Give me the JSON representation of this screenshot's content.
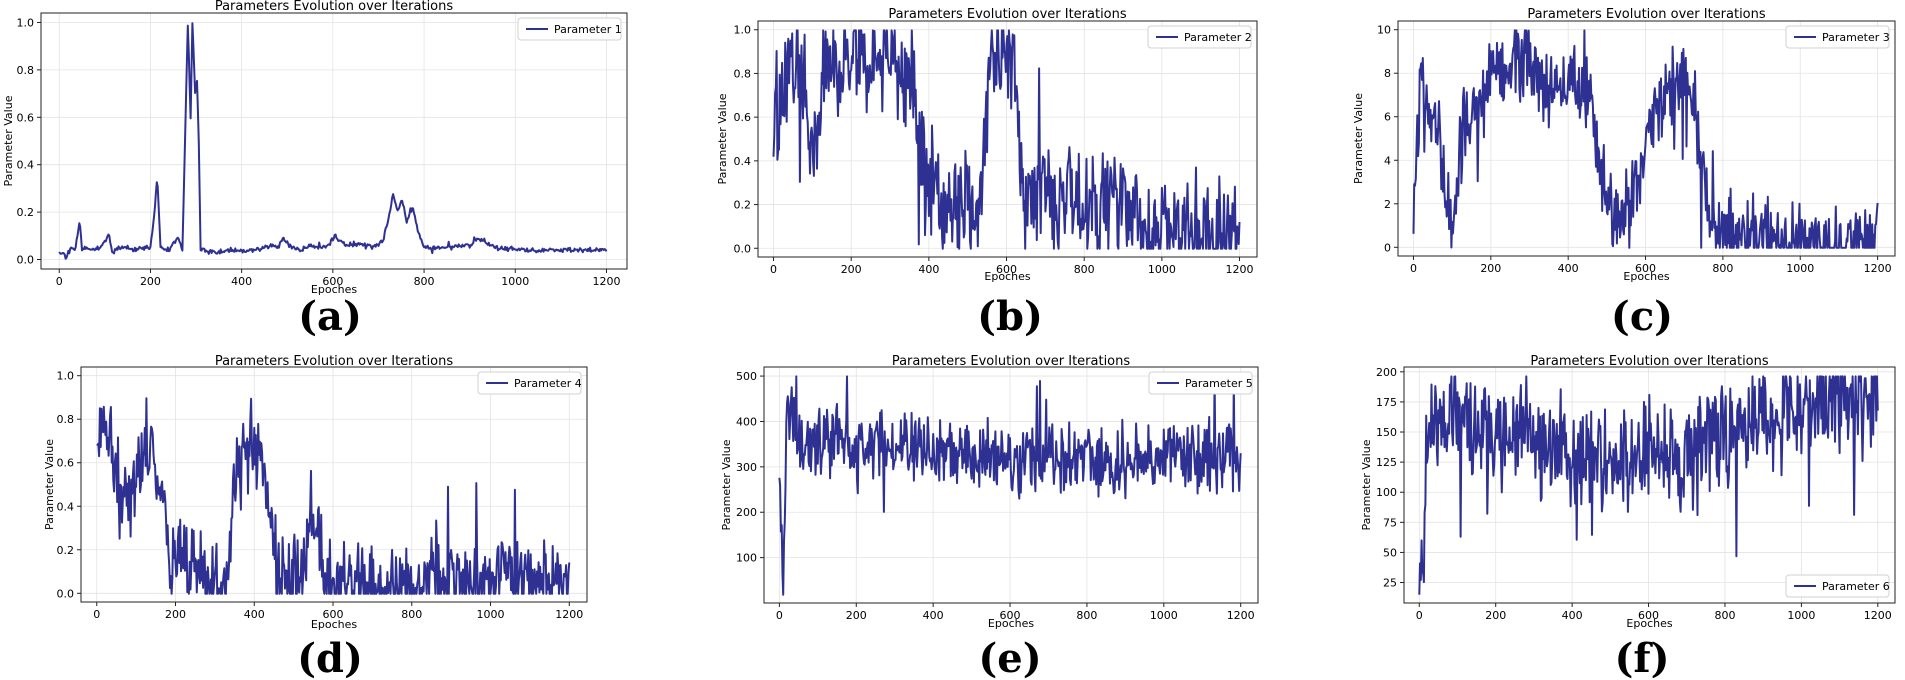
{
  "figure": {
    "line_color": "#2E3192"
  },
  "chart_data": [
    {
      "id": "a",
      "type": "line",
      "panel_label": "(a)",
      "title": "Parameters Evolution over Iterations",
      "xlabel": "Epoches",
      "ylabel": "Parameter Value",
      "xlim": [
        -40,
        1245
      ],
      "ylim": [
        -0.04,
        1.04
      ],
      "xticks": [
        0,
        200,
        400,
        600,
        800,
        1000,
        1200
      ],
      "yticks": [
        0.0,
        0.2,
        0.4,
        0.6,
        0.8,
        1.0
      ],
      "ytick_labels": [
        "0.0",
        "0.2",
        "0.4",
        "0.6",
        "0.8",
        "1.0"
      ],
      "grid": true,
      "legend_loc": "top-right",
      "series": [
        {
          "name": "Parameter 1",
          "x_range": [
            0,
            1200
          ],
          "points": [
            [
              0,
              0.035
            ],
            [
              8,
              0.03
            ],
            [
              15,
              0.01
            ],
            [
              22,
              0.04
            ],
            [
              35,
              0.05
            ],
            [
              45,
              0.16
            ],
            [
              50,
              0.05
            ],
            [
              70,
              0.04
            ],
            [
              90,
              0.05
            ],
            [
              110,
              0.1
            ],
            [
              115,
              0.04
            ],
            [
              140,
              0.05
            ],
            [
              170,
              0.04
            ],
            [
              200,
              0.05
            ],
            [
              210,
              0.22
            ],
            [
              215,
              0.36
            ],
            [
              222,
              0.05
            ],
            [
              240,
              0.04
            ],
            [
              260,
              0.09
            ],
            [
              270,
              0.04
            ],
            [
              282,
              1.0
            ],
            [
              288,
              0.6
            ],
            [
              292,
              1.0
            ],
            [
              298,
              0.7
            ],
            [
              302,
              0.75
            ],
            [
              306,
              0.5
            ],
            [
              310,
              0.04
            ],
            [
              340,
              0.03
            ],
            [
              380,
              0.04
            ],
            [
              420,
              0.035
            ],
            [
              450,
              0.05
            ],
            [
              470,
              0.06
            ],
            [
              480,
              0.05
            ],
            [
              490,
              0.09
            ],
            [
              510,
              0.05
            ],
            [
              530,
              0.04
            ],
            [
              550,
              0.06
            ],
            [
              570,
              0.05
            ],
            [
              590,
              0.06
            ],
            [
              605,
              0.1
            ],
            [
              615,
              0.08
            ],
            [
              630,
              0.06
            ],
            [
              660,
              0.07
            ],
            [
              690,
              0.05
            ],
            [
              710,
              0.08
            ],
            [
              725,
              0.2
            ],
            [
              732,
              0.28
            ],
            [
              742,
              0.2
            ],
            [
              752,
              0.25
            ],
            [
              762,
              0.16
            ],
            [
              775,
              0.22
            ],
            [
              790,
              0.1
            ],
            [
              800,
              0.05
            ],
            [
              850,
              0.05
            ],
            [
              900,
              0.06
            ],
            [
              920,
              0.09
            ],
            [
              935,
              0.07
            ],
            [
              960,
              0.05
            ],
            [
              1000,
              0.04
            ],
            [
              1100,
              0.04
            ],
            [
              1200,
              0.042
            ]
          ],
          "noise": 0.012,
          "seed": 11
        }
      ]
    },
    {
      "id": "b",
      "type": "line",
      "panel_label": "(b)",
      "title": "Parameters Evolution over Iterations",
      "xlabel": "Epoches",
      "ylabel": "Parameter Value",
      "xlim": [
        -40,
        1245
      ],
      "ylim": [
        -0.04,
        1.04
      ],
      "xticks": [
        0,
        200,
        400,
        600,
        800,
        1000,
        1200
      ],
      "yticks": [
        0.0,
        0.2,
        0.4,
        0.6,
        0.8,
        1.0
      ],
      "ytick_labels": [
        "0.0",
        "0.2",
        "0.4",
        "0.6",
        "0.8",
        "1.0"
      ],
      "grid": true,
      "legend_loc": "top-right",
      "series": [
        {
          "name": "Parameter 2",
          "x_range": [
            0,
            1200
          ],
          "points": [
            [
              0,
              0.5
            ],
            [
              20,
              0.7
            ],
            [
              40,
              0.85
            ],
            [
              80,
              0.8
            ],
            [
              100,
              0.35
            ],
            [
              130,
              0.9
            ],
            [
              200,
              0.85
            ],
            [
              300,
              0.9
            ],
            [
              360,
              0.7
            ],
            [
              380,
              0.45
            ],
            [
              400,
              0.3
            ],
            [
              440,
              0.2
            ],
            [
              480,
              0.25
            ],
            [
              500,
              0.2
            ],
            [
              520,
              0.15
            ],
            [
              540,
              0.3
            ],
            [
              555,
              0.9
            ],
            [
              580,
              0.95
            ],
            [
              620,
              0.8
            ],
            [
              640,
              0.3
            ],
            [
              660,
              0.2
            ],
            [
              700,
              0.3
            ],
            [
              730,
              0.2
            ],
            [
              760,
              0.25
            ],
            [
              800,
              0.22
            ],
            [
              860,
              0.18
            ],
            [
              900,
              0.25
            ],
            [
              930,
              0.15
            ],
            [
              960,
              0.08
            ],
            [
              1000,
              0.07
            ],
            [
              1100,
              0.06
            ],
            [
              1200,
              0.05
            ]
          ],
          "noise": 0.3,
          "seed": 22
        }
      ]
    },
    {
      "id": "c",
      "type": "line",
      "panel_label": "(c)",
      "title": "Parameters Evolution over Iterations",
      "xlabel": "Epoches",
      "ylabel": "Parameter Value",
      "xlim": [
        -40,
        1245
      ],
      "ylim": [
        -0.4,
        10.4
      ],
      "xticks": [
        0,
        200,
        400,
        600,
        800,
        1000,
        1200
      ],
      "yticks": [
        0,
        2,
        4,
        6,
        8,
        10
      ],
      "ytick_labels": [
        "0",
        "2",
        "4",
        "6",
        "8",
        "10"
      ],
      "grid": true,
      "legend_loc": "top-right",
      "series": [
        {
          "name": "Parameter 3",
          "x_range": [
            0,
            1200
          ],
          "points": [
            [
              0,
              1.2
            ],
            [
              20,
              8
            ],
            [
              60,
              6
            ],
            [
              100,
              0.5
            ],
            [
              130,
              6
            ],
            [
              200,
              8
            ],
            [
              300,
              8.5
            ],
            [
              350,
              7
            ],
            [
              400,
              8
            ],
            [
              450,
              7
            ],
            [
              500,
              2
            ],
            [
              540,
              0.8
            ],
            [
              580,
              3
            ],
            [
              620,
              6
            ],
            [
              660,
              7
            ],
            [
              700,
              8.5
            ],
            [
              730,
              6
            ],
            [
              760,
              1.5
            ],
            [
              790,
              0.8
            ],
            [
              850,
              0.7
            ],
            [
              900,
              0.5
            ],
            [
              1000,
              0.2
            ],
            [
              1100,
              0.15
            ],
            [
              1200,
              0.15
            ]
          ],
          "noise": 2.2,
          "seed": 33
        }
      ]
    },
    {
      "id": "d",
      "type": "line",
      "panel_label": "(d)",
      "title": "Parameters Evolution over Iterations",
      "xlabel": "Epoches",
      "ylabel": "Parameter Value",
      "xlim": [
        -40,
        1245
      ],
      "ylim": [
        -0.04,
        1.04
      ],
      "xticks": [
        0,
        200,
        400,
        600,
        800,
        1000,
        1200
      ],
      "yticks": [
        0.0,
        0.2,
        0.4,
        0.6,
        0.8,
        1.0
      ],
      "ytick_labels": [
        "0.0",
        "0.2",
        "0.4",
        "0.6",
        "0.8",
        "1.0"
      ],
      "grid": true,
      "legend_loc": "top-right",
      "series": [
        {
          "name": "Parameter 4",
          "x_range": [
            0,
            1200
          ],
          "points": [
            [
              0,
              0.75
            ],
            [
              20,
              0.9
            ],
            [
              50,
              0.5
            ],
            [
              80,
              0.4
            ],
            [
              120,
              0.7
            ],
            [
              160,
              0.5
            ],
            [
              190,
              0.15
            ],
            [
              220,
              0.2
            ],
            [
              260,
              0.08
            ],
            [
              300,
              0.02
            ],
            [
              330,
              0.1
            ],
            [
              360,
              0.6
            ],
            [
              400,
              0.7
            ],
            [
              430,
              0.5
            ],
            [
              460,
              0.05
            ],
            [
              500,
              0.03
            ],
            [
              530,
              0.1
            ],
            [
              545,
              0.4
            ],
            [
              560,
              0.3
            ],
            [
              580,
              0.05
            ],
            [
              620,
              0.03
            ],
            [
              660,
              0.06
            ],
            [
              700,
              0.03
            ],
            [
              800,
              0.03
            ],
            [
              900,
              0.04
            ],
            [
              1000,
              0.06
            ],
            [
              1040,
              0.1
            ],
            [
              1060,
              0.07
            ],
            [
              1100,
              0.05
            ],
            [
              1200,
              0.04
            ]
          ],
          "noise": 0.25,
          "seed": 44
        }
      ]
    },
    {
      "id": "e",
      "type": "line",
      "panel_label": "(e)",
      "title": "Parameters Evolution over Iterations",
      "xlabel": "Epoches",
      "ylabel": "Parameter Value",
      "xlim": [
        -40,
        1245
      ],
      "ylim": [
        0,
        520
      ],
      "xticks": [
        0,
        200,
        400,
        600,
        800,
        1000,
        1200
      ],
      "yticks": [
        100,
        200,
        300,
        400,
        500
      ],
      "ytick_labels": [
        "100",
        "200",
        "300",
        "400",
        "500"
      ],
      "grid": true,
      "legend_loc": "top-right",
      "series": [
        {
          "name": "Parameter 5",
          "x_range": [
            0,
            1200
          ],
          "points": [
            [
              0,
              300
            ],
            [
              10,
              22
            ],
            [
              20,
              420
            ],
            [
              60,
              350
            ],
            [
              100,
              360
            ],
            [
              200,
              340
            ],
            [
              300,
              350
            ],
            [
              400,
              330
            ],
            [
              500,
              320
            ],
            [
              600,
              320
            ],
            [
              700,
              315
            ],
            [
              800,
              310
            ],
            [
              900,
              310
            ],
            [
              1000,
              320
            ],
            [
              1100,
              325
            ],
            [
              1200,
              320
            ]
          ],
          "noise": 95,
          "seed": 55
        }
      ]
    },
    {
      "id": "f",
      "type": "line",
      "panel_label": "(f)",
      "title": "Parameters Evolution over Iterations",
      "xlabel": "Epoches",
      "ylabel": "Parameter Value",
      "xlim": [
        -40,
        1245
      ],
      "ylim": [
        8,
        204
      ],
      "xticks": [
        0,
        200,
        400,
        600,
        800,
        1000,
        1200
      ],
      "yticks": [
        25,
        50,
        75,
        100,
        125,
        150,
        175,
        200
      ],
      "ytick_labels": [
        "25",
        "50",
        "75",
        "100",
        "125",
        "150",
        "175",
        "200"
      ],
      "grid": true,
      "legend_loc": "bottom-right",
      "series": [
        {
          "name": "Parameter 6",
          "x_range": [
            0,
            1200
          ],
          "points": [
            [
              0,
              65
            ],
            [
              10,
              14
            ],
            [
              20,
              150
            ],
            [
              100,
              160
            ],
            [
              200,
              150
            ],
            [
              300,
              140
            ],
            [
              400,
              130
            ],
            [
              500,
              120
            ],
            [
              600,
              140
            ],
            [
              700,
              130
            ],
            [
              800,
              150
            ],
            [
              900,
              160
            ],
            [
              1000,
              175
            ],
            [
              1050,
              180
            ],
            [
              1100,
              185
            ],
            [
              1200,
              188
            ]
          ],
          "noise": 55,
          "seed": 66
        }
      ]
    }
  ]
}
